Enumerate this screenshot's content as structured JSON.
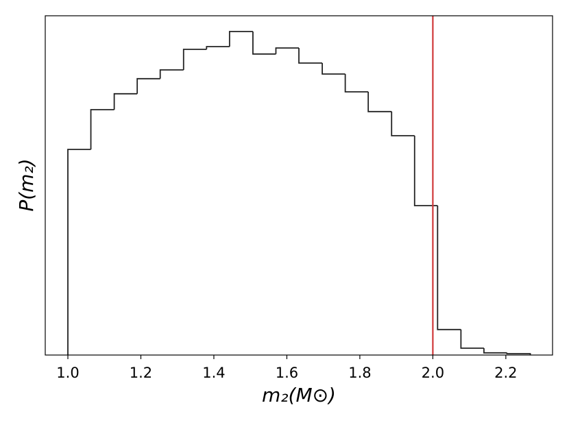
{
  "chart_data": {
    "type": "histogram",
    "x_label": "m₂(M⊙)",
    "y_label": "P(m₂)",
    "bins": [
      1.0,
      1.063,
      1.127,
      1.19,
      1.253,
      1.317,
      1.38,
      1.443,
      1.507,
      1.57,
      1.633,
      1.697,
      1.76,
      1.823,
      1.887,
      1.95,
      2.013,
      2.077,
      2.14,
      2.203,
      2.267
    ],
    "values": [
      0.75,
      0.895,
      0.953,
      1.008,
      1.04,
      1.115,
      1.125,
      1.18,
      1.098,
      1.12,
      1.065,
      1.025,
      0.96,
      0.888,
      0.8,
      0.545,
      0.093,
      0.025,
      0.008,
      0.005
    ],
    "color": "#222222",
    "vline": {
      "value": 2.0,
      "color": "#d0383a"
    },
    "xlim": [
      0.938,
      2.328
    ],
    "ylim": [
      0,
      1.2375
    ],
    "xticks": [
      {
        "value": 1.0,
        "label": "1.0"
      },
      1.2,
      1.4,
      1.6,
      1.8,
      {
        "value": 2.0,
        "label": "2.0"
      },
      2.2
    ]
  }
}
